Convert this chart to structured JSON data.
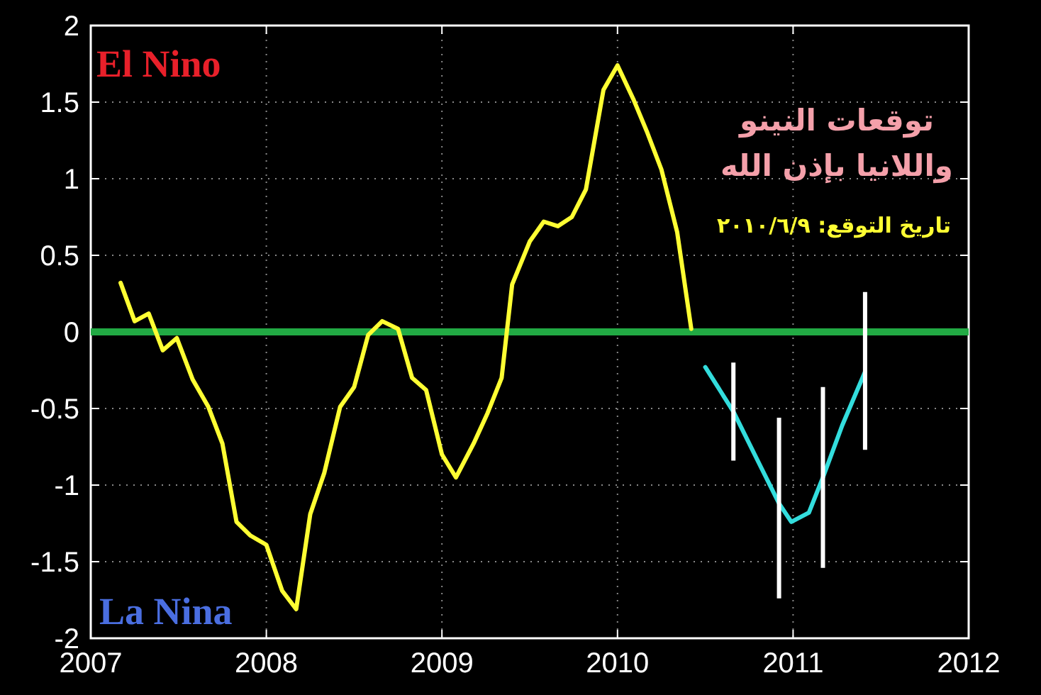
{
  "chart_data": {
    "type": "line",
    "xlim": [
      2007,
      2012
    ],
    "xticks": [
      2007,
      2008,
      2009,
      2010,
      2011,
      2012
    ],
    "ylim": [
      -2,
      2
    ],
    "yticks": [
      -2,
      -1.5,
      -1,
      -0.5,
      0,
      0.5,
      1,
      1.5,
      2
    ],
    "grid": true,
    "line_style": "solid",
    "marker": "none",
    "series": [
      {
        "color": "#ffff33",
        "x": [
          2007.17,
          2007.25,
          2007.33,
          2007.41,
          2007.49,
          2007.58,
          2007.67,
          2007.75,
          2007.83,
          2007.91,
          2008.0,
          2008.09,
          2008.17,
          2008.25,
          2008.33,
          2008.42,
          2008.5,
          2008.58,
          2008.66,
          2008.75,
          2008.83,
          2008.91,
          2009.0,
          2009.08,
          2009.18,
          2009.26,
          2009.34,
          2009.4,
          2009.5,
          2009.58,
          2009.66,
          2009.74,
          2009.82,
          2009.92,
          2010.0,
          2010.09,
          2010.17,
          2010.25,
          2010.34,
          2010.42
        ],
        "values": [
          0.32,
          0.07,
          0.12,
          -0.12,
          -0.04,
          -0.31,
          -0.49,
          -0.73,
          -1.24,
          -1.33,
          -1.39,
          -1.69,
          -1.81,
          -1.19,
          -0.92,
          -0.49,
          -0.36,
          -0.02,
          0.07,
          0.02,
          -0.3,
          -0.38,
          -0.8,
          -0.95,
          -0.73,
          -0.53,
          -0.3,
          0.31,
          0.59,
          0.72,
          0.69,
          0.75,
          0.93,
          1.58,
          1.74,
          1.52,
          1.3,
          1.06,
          0.65,
          0.02
        ]
      },
      {
        "color": "#33dddd",
        "x": [
          2010.5,
          2010.66,
          2010.82,
          2010.92,
          2010.99,
          2011.09,
          2011.17,
          2011.28,
          2011.41
        ],
        "values": [
          -0.23,
          -0.52,
          -0.89,
          -1.12,
          -1.24,
          -1.18,
          -0.95,
          -0.61,
          -0.26
        ],
        "errors": [
          null,
          [
            -0.84,
            -0.2
          ],
          null,
          [
            -1.74,
            -0.56
          ],
          null,
          null,
          [
            -1.54,
            -0.36
          ],
          null,
          [
            -0.77,
            0.26
          ]
        ]
      }
    ],
    "ref_lines": [
      {
        "axis": "y",
        "value": 0,
        "color": "#22aa44"
      }
    ],
    "annotations": [
      "El Nino",
      "La Nina",
      "توقعات النينو",
      "واللانيا بإذن الله",
      "تاريخ التوقع: ٢٠١٠/٦/٩"
    ]
  }
}
